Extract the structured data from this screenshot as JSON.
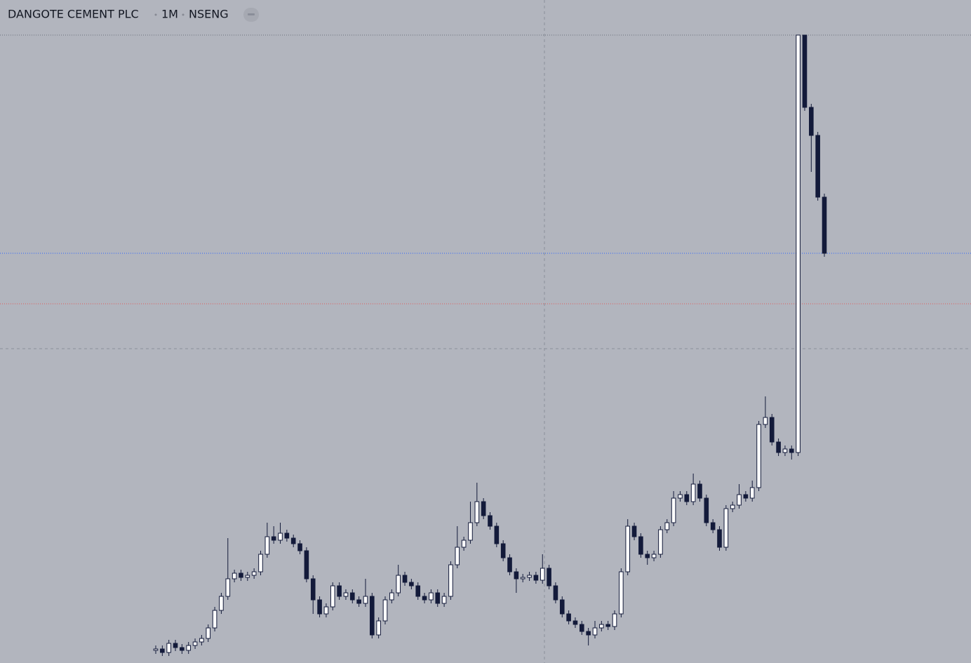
{
  "chart_data": {
    "type": "candlestick",
    "title": "DANGOTE CEMENT PLC",
    "interval": "1M",
    "exchange": "NSENG",
    "up_color": "#ffffff",
    "down_color": "#131a3a",
    "wick_color": "#131a3a",
    "ylim": [
      0,
      945
    ],
    "open": [
      18,
      20,
      15,
      28,
      22,
      18,
      25,
      30,
      35,
      50,
      75,
      95,
      120,
      128,
      122,
      125,
      130,
      155,
      180,
      175,
      185,
      178,
      170,
      160,
      120,
      90,
      70,
      80,
      110,
      95,
      100,
      90,
      85,
      95,
      40,
      60,
      90,
      100,
      125,
      115,
      110,
      95,
      90,
      100,
      85,
      95,
      140,
      165,
      175,
      200,
      230,
      210,
      195,
      170,
      150,
      130,
      120,
      122,
      125,
      118,
      135,
      110,
      90,
      70,
      60,
      55,
      45,
      40,
      50,
      55,
      52,
      70,
      130,
      195,
      180,
      155,
      150,
      155,
      190,
      200,
      235,
      240,
      230,
      255,
      235,
      200,
      190,
      165,
      220,
      225,
      240,
      235,
      250,
      340,
      350,
      315,
      300,
      305,
      300,
      895,
      792,
      752,
      664
    ],
    "high": [
      25,
      25,
      33,
      33,
      27,
      30,
      35,
      40,
      55,
      80,
      100,
      178,
      133,
      133,
      130,
      135,
      160,
      200,
      195,
      200,
      190,
      183,
      175,
      165,
      125,
      95,
      85,
      115,
      115,
      105,
      105,
      95,
      120,
      100,
      65,
      95,
      105,
      140,
      130,
      120,
      115,
      100,
      105,
      105,
      100,
      145,
      195,
      180,
      230,
      257,
      235,
      215,
      200,
      175,
      155,
      135,
      127,
      130,
      130,
      155,
      140,
      115,
      95,
      75,
      65,
      60,
      50,
      60,
      60,
      60,
      75,
      135,
      205,
      200,
      185,
      160,
      160,
      195,
      205,
      245,
      245,
      245,
      270,
      260,
      240,
      205,
      195,
      225,
      230,
      255,
      245,
      260,
      345,
      380,
      355,
      320,
      310,
      310,
      895,
      895,
      797,
      757,
      669
    ],
    "low": [
      13,
      10,
      10,
      17,
      13,
      13,
      20,
      25,
      30,
      45,
      70,
      90,
      115,
      117,
      117,
      120,
      125,
      150,
      170,
      170,
      173,
      165,
      155,
      115,
      70,
      65,
      65,
      75,
      90,
      90,
      85,
      80,
      80,
      35,
      35,
      55,
      85,
      95,
      110,
      105,
      90,
      85,
      85,
      80,
      80,
      90,
      135,
      160,
      170,
      195,
      205,
      190,
      165,
      145,
      125,
      100,
      115,
      117,
      113,
      113,
      105,
      85,
      65,
      55,
      50,
      40,
      25,
      35,
      45,
      47,
      47,
      65,
      125,
      175,
      150,
      140,
      145,
      150,
      185,
      195,
      230,
      225,
      225,
      230,
      195,
      185,
      160,
      160,
      215,
      220,
      230,
      230,
      245,
      335,
      310,
      295,
      295,
      290,
      295,
      787,
      700,
      659,
      579
    ],
    "close": [
      20,
      15,
      28,
      22,
      18,
      25,
      30,
      35,
      50,
      75,
      95,
      120,
      128,
      122,
      125,
      130,
      155,
      180,
      175,
      185,
      178,
      170,
      160,
      120,
      90,
      70,
      80,
      110,
      95,
      100,
      90,
      85,
      95,
      40,
      60,
      90,
      100,
      125,
      115,
      110,
      95,
      90,
      100,
      85,
      95,
      140,
      165,
      175,
      200,
      230,
      210,
      195,
      170,
      150,
      130,
      120,
      122,
      125,
      118,
      135,
      110,
      90,
      70,
      60,
      55,
      45,
      40,
      50,
      55,
      52,
      70,
      130,
      195,
      180,
      155,
      150,
      155,
      190,
      200,
      235,
      240,
      230,
      255,
      235,
      200,
      190,
      165,
      220,
      225,
      240,
      235,
      250,
      340,
      350,
      315,
      300,
      305,
      300,
      895,
      792,
      752,
      664,
      584
    ]
  }
}
